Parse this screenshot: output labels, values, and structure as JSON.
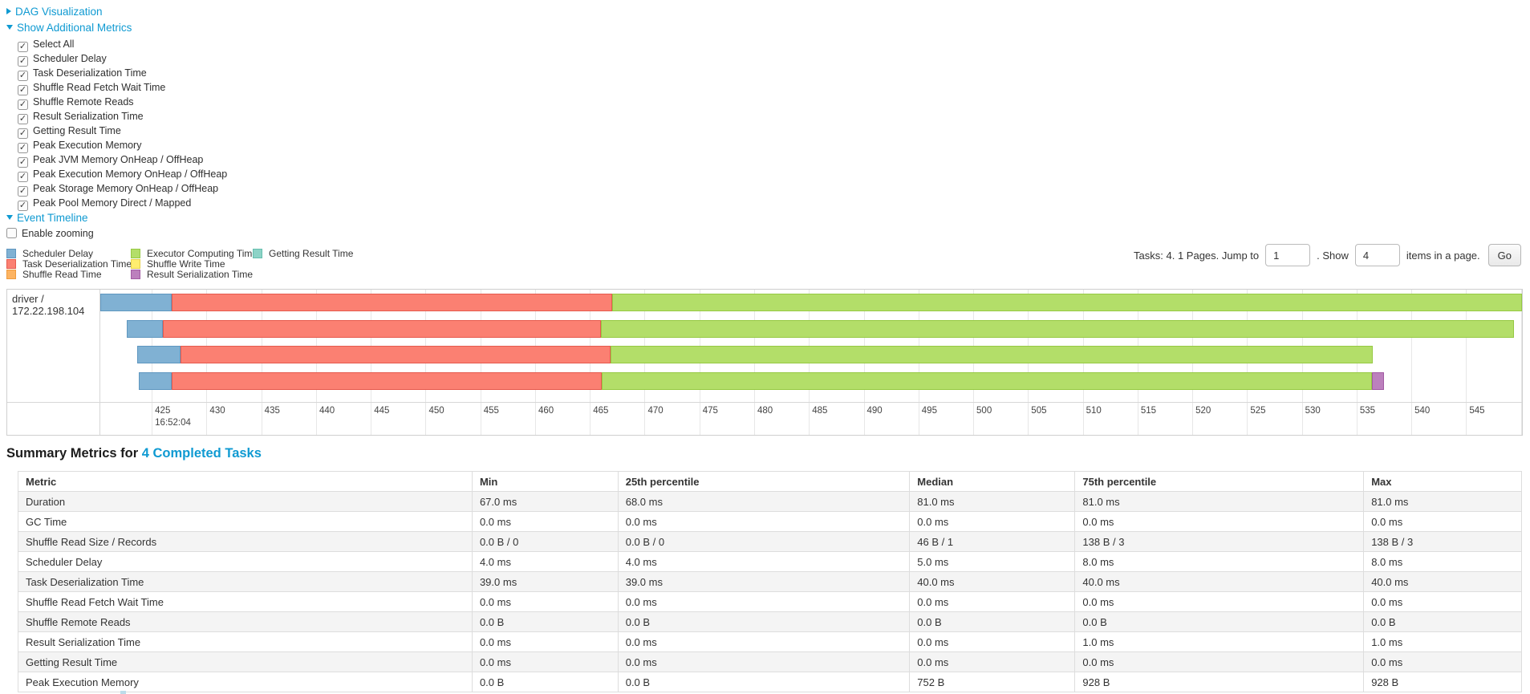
{
  "colors": {
    "accent": "#0f9ad2",
    "segments": {
      "scheduler_delay": {
        "fill": "#80B1D3",
        "border": "#5f97c0"
      },
      "task_deserialization": {
        "fill": "#FB8072",
        "border": "#e65a4d"
      },
      "shuffle_read": {
        "fill": "#FDB462",
        "border": "#ef9b3e"
      },
      "executor_computing": {
        "fill": "#B3DE69",
        "border": "#96c943"
      },
      "shuffle_write": {
        "fill": "#FFED6F",
        "border": "#e6d148"
      },
      "result_serialization": {
        "fill": "#BC80BD",
        "border": "#a25ba3"
      },
      "getting_result": {
        "fill": "#8DD3C7",
        "border": "#65bfae"
      }
    }
  },
  "sections": {
    "dag_label": "DAG Visualization",
    "metrics_label": "Show Additional Metrics",
    "timeline_label": "Event Timeline"
  },
  "metrics_panel": {
    "items": [
      {
        "label": "Select All",
        "checked": true,
        "mark": "✓"
      },
      {
        "label": "Scheduler Delay",
        "checked": true,
        "mark": "✓"
      },
      {
        "label": "Task Deserialization Time",
        "checked": true,
        "mark": "✓"
      },
      {
        "label": "Shuffle Read Fetch Wait Time",
        "checked": true,
        "mark": "✓"
      },
      {
        "label": "Shuffle Remote Reads",
        "checked": true,
        "mark": "✓"
      },
      {
        "label": "Result Serialization Time",
        "checked": true,
        "mark": "✓"
      },
      {
        "label": "Getting Result Time",
        "checked": true,
        "mark": "✓"
      },
      {
        "label": "Peak Execution Memory",
        "checked": true,
        "mark": "✓"
      },
      {
        "label": "Peak JVM Memory OnHeap / OffHeap",
        "checked": true,
        "mark": "✓"
      },
      {
        "label": "Peak Execution Memory OnHeap / OffHeap",
        "checked": true,
        "mark": "✓"
      },
      {
        "label": "Peak Storage Memory OnHeap / OffHeap",
        "checked": true,
        "mark": "✓"
      },
      {
        "label": "Peak Pool Memory Direct / Mapped",
        "checked": true,
        "mark": "✓"
      }
    ]
  },
  "enable_zooming": {
    "label": "Enable zooming",
    "checked": false,
    "mark": ""
  },
  "legend": {
    "items": [
      {
        "label": "Scheduler Delay",
        "type": "scheduler_delay"
      },
      {
        "label": "Task Deserialization Time",
        "type": "task_deserialization"
      },
      {
        "label": "Shuffle Read Time",
        "type": "shuffle_read"
      },
      {
        "label": "Executor Computing Time",
        "type": "executor_computing"
      },
      {
        "label": "Shuffle Write Time",
        "type": "shuffle_write"
      },
      {
        "label": "Result Serialization Time",
        "type": "result_serialization"
      },
      {
        "label": "Getting Result Time",
        "type": "getting_result"
      }
    ]
  },
  "pagination": {
    "prefix_label": "Tasks: 4. 1 Pages. Jump to",
    "jump_value": "1",
    "show_label": ". Show",
    "size_value": "4",
    "items_label": "items in a page.",
    "go_label": "Go"
  },
  "timeline": {
    "group_label": "driver / 172.22.198.104",
    "view_start": 420.3,
    "view_end": 550.1,
    "axis": {
      "tick_start": 425,
      "tick_end": 550,
      "tick_step": 5,
      "major_label": "16:52:04",
      "major_at": 425
    },
    "tasks": [
      {
        "segments": [
          {
            "type": "scheduler_delay",
            "start": 420.3,
            "end": 426.8
          },
          {
            "type": "task_deserialization",
            "start": 426.8,
            "end": 467.0
          },
          {
            "type": "executor_computing",
            "start": 467.0,
            "end": 550.1
          }
        ]
      },
      {
        "segments": [
          {
            "type": "scheduler_delay",
            "start": 422.7,
            "end": 426.0
          },
          {
            "type": "task_deserialization",
            "start": 426.0,
            "end": 466.0
          },
          {
            "type": "executor_computing",
            "start": 466.0,
            "end": 549.4
          }
        ]
      },
      {
        "segments": [
          {
            "type": "scheduler_delay",
            "start": 423.7,
            "end": 427.6
          },
          {
            "type": "task_deserialization",
            "start": 427.6,
            "end": 466.9
          },
          {
            "type": "executor_computing",
            "start": 466.9,
            "end": 536.5
          }
        ]
      },
      {
        "segments": [
          {
            "type": "scheduler_delay",
            "start": 423.8,
            "end": 426.8
          },
          {
            "type": "task_deserialization",
            "start": 426.8,
            "end": 466.1
          },
          {
            "type": "executor_computing",
            "start": 466.1,
            "end": 536.4
          },
          {
            "type": "result_serialization",
            "start": 536.4,
            "end": 537.5
          }
        ]
      }
    ]
  },
  "summary": {
    "title_prefix": "Summary Metrics for",
    "title_link": "4 Completed Tasks",
    "columns": [
      "Metric",
      "Min",
      "25th percentile",
      "Median",
      "75th percentile",
      "Max"
    ],
    "rows": [
      {
        "metric": "Duration",
        "values": [
          "67.0 ms",
          "68.0 ms",
          "81.0 ms",
          "81.0 ms",
          "81.0 ms"
        ]
      },
      {
        "metric": "GC Time",
        "values": [
          "0.0 ms",
          "0.0 ms",
          "0.0 ms",
          "0.0 ms",
          "0.0 ms"
        ]
      },
      {
        "metric": "Shuffle Read Size / Records",
        "values": [
          "0.0 B / 0",
          "0.0 B / 0",
          "46 B / 1",
          "138 B / 3",
          "138 B / 3"
        ]
      },
      {
        "metric": "Scheduler Delay",
        "values": [
          "4.0 ms",
          "4.0 ms",
          "5.0 ms",
          "8.0 ms",
          "8.0 ms"
        ]
      },
      {
        "metric": "Task Deserialization Time",
        "values": [
          "39.0 ms",
          "39.0 ms",
          "40.0 ms",
          "40.0 ms",
          "40.0 ms"
        ]
      },
      {
        "metric": "Shuffle Read Fetch Wait Time",
        "values": [
          "0.0 ms",
          "0.0 ms",
          "0.0 ms",
          "0.0 ms",
          "0.0 ms"
        ]
      },
      {
        "metric": "Shuffle Remote Reads",
        "values": [
          "0.0 B",
          "0.0 B",
          "0.0 B",
          "0.0 B",
          "0.0 B"
        ]
      },
      {
        "metric": "Result Serialization Time",
        "values": [
          "0.0 ms",
          "0.0 ms",
          "0.0 ms",
          "1.0 ms",
          "1.0 ms"
        ]
      },
      {
        "metric": "Getting Result Time",
        "values": [
          "0.0 ms",
          "0.0 ms",
          "0.0 ms",
          "0.0 ms",
          "0.0 ms"
        ]
      },
      {
        "metric": "Peak Execution Memory",
        "values": [
          "0.0 B",
          "0.0 B",
          "752 B",
          "928 B",
          "928 B"
        ]
      }
    ]
  }
}
